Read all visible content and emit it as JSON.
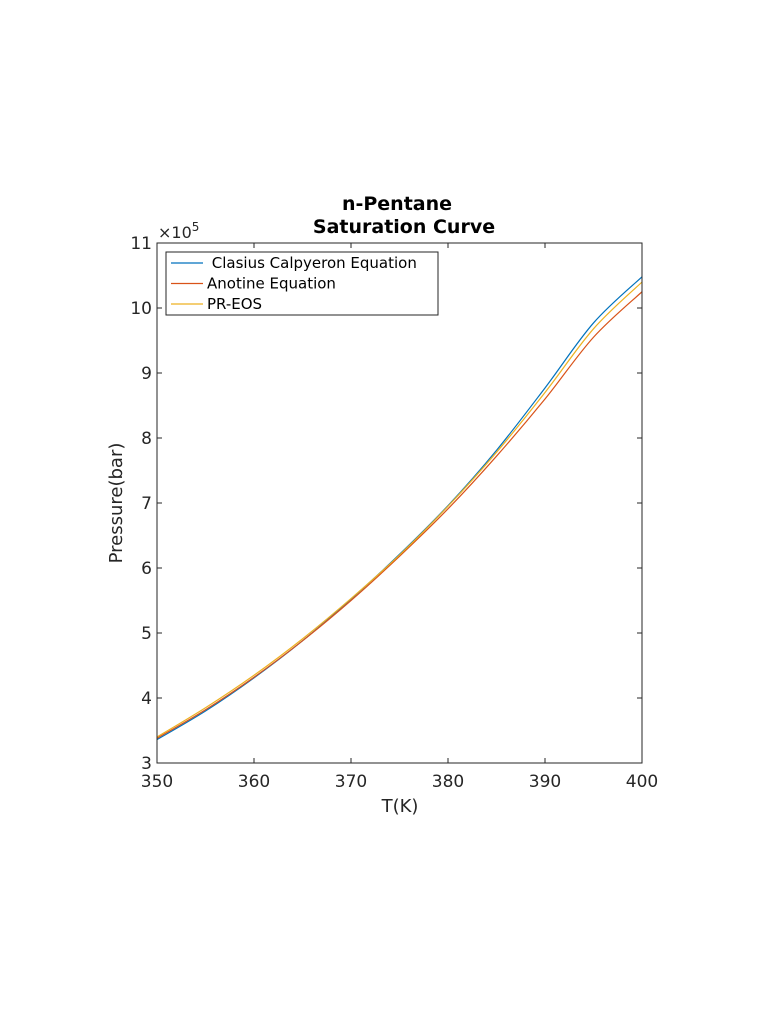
{
  "chart_data": {
    "type": "line",
    "title": [
      "n-Pentane",
      "Saturation Curve"
    ],
    "xlabel": "T(K)",
    "ylabel": "Pressure(bar)",
    "xlim": [
      350,
      400
    ],
    "ylim": [
      3,
      11
    ],
    "y_exponent_label": "×10",
    "y_exponent_power": "5",
    "xticks": [
      "350",
      "360",
      "370",
      "380",
      "390",
      "400"
    ],
    "yticks": [
      "3",
      "4",
      "5",
      "6",
      "7",
      "8",
      "9",
      "10",
      "11"
    ],
    "grid": false,
    "legend_position": "top-left",
    "x": [
      350,
      355,
      360,
      365,
      370,
      375,
      380,
      385,
      390,
      395,
      400
    ],
    "series": [
      {
        "name": " Clasius Calpyeron Equation",
        "color": "#0072BD",
        "values": [
          3.36,
          3.8,
          4.31,
          4.88,
          5.52,
          6.21,
          6.96,
          7.81,
          8.77,
          9.77,
          10.48
        ]
      },
      {
        "name": "Anotine Equation",
        "color": "#D95319",
        "values": [
          3.38,
          3.82,
          4.32,
          4.88,
          5.5,
          6.18,
          6.91,
          7.72,
          8.6,
          9.55,
          10.25
        ]
      },
      {
        "name": "PR-EOS",
        "color": "#EDB120",
        "values": [
          3.4,
          3.85,
          4.35,
          4.91,
          5.53,
          6.2,
          6.95,
          7.78,
          8.7,
          9.68,
          10.4
        ]
      }
    ]
  }
}
